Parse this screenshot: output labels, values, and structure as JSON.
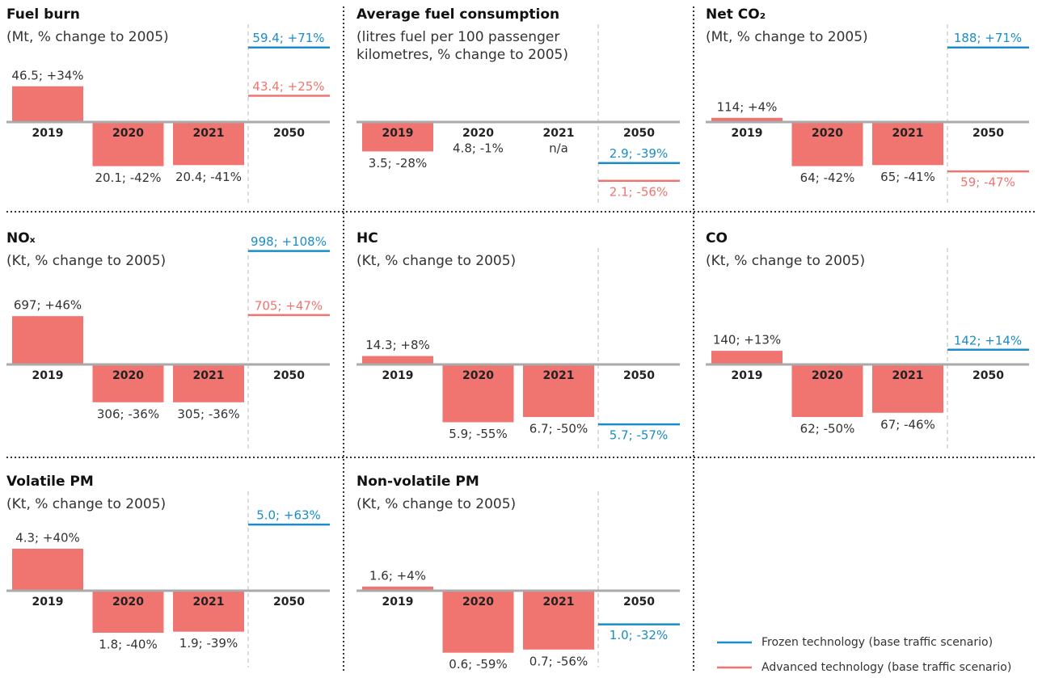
{
  "chart_data": [
    {
      "type": "bar",
      "title": "Fuel burn",
      "subtitle": "(Mt, % change to 2005)",
      "categories": [
        "2019",
        "2020",
        "2021",
        "2050"
      ],
      "values": [
        34,
        -42,
        -41,
        null
      ],
      "value_labels": [
        "46.5; +34%",
        "20.1; -42%",
        "20.4; -41%",
        null
      ],
      "frozen": {
        "value": 71,
        "label": "59.4; +71%"
      },
      "advanced": {
        "value": 25,
        "label": "43.4; +25%"
      }
    },
    {
      "type": "bar",
      "title": "Average fuel consumption",
      "subtitle": "(litres fuel per 100 passenger kilometres, % change to 2005)",
      "categories": [
        "2019",
        "2020",
        "2021",
        "2050"
      ],
      "values": [
        -28,
        -1,
        null,
        null
      ],
      "value_labels": [
        "3.5; -28%",
        "4.8; -1%",
        "n/a",
        null
      ],
      "frozen": {
        "value": -39,
        "label": "2.9; -39%"
      },
      "advanced": {
        "value": -56,
        "label": "2.1; -56%"
      }
    },
    {
      "type": "bar",
      "title": "Net CO₂",
      "subtitle": "(Mt, % change to 2005)",
      "categories": [
        "2019",
        "2020",
        "2021",
        "2050"
      ],
      "values": [
        4,
        -42,
        -41,
        null
      ],
      "value_labels": [
        "114; +4%",
        "64; -42%",
        "65; -41%",
        null
      ],
      "frozen": {
        "value": 71,
        "label": "188; +71%"
      },
      "advanced": {
        "value": -47,
        "label": "59; -47%"
      }
    },
    {
      "type": "bar",
      "title": "NOₓ",
      "subtitle": "(Kt, % change to 2005)",
      "categories": [
        "2019",
        "2020",
        "2021",
        "2050"
      ],
      "values": [
        46,
        -36,
        -36,
        null
      ],
      "value_labels": [
        "697; +46%",
        "306; -36%",
        "305; -36%",
        null
      ],
      "frozen": {
        "value": 108,
        "label": "998; +108%"
      },
      "advanced": {
        "value": 47,
        "label": "705; +47%"
      }
    },
    {
      "type": "bar",
      "title": "HC",
      "subtitle": "(Kt, % change to 2005)",
      "categories": [
        "2019",
        "2020",
        "2021",
        "2050"
      ],
      "values": [
        8,
        -55,
        -50,
        null
      ],
      "value_labels": [
        "14.3; +8%",
        "5.9; -55%",
        "6.7; -50%",
        null
      ],
      "frozen": {
        "value": -57,
        "label": "5.7; -57%"
      }
    },
    {
      "type": "bar",
      "title": "CO",
      "subtitle": "(Kt, % change to 2005)",
      "categories": [
        "2019",
        "2020",
        "2021",
        "2050"
      ],
      "values": [
        13,
        -50,
        -46,
        null
      ],
      "value_labels": [
        "140; +13%",
        "62; -50%",
        "67; -46%",
        null
      ],
      "frozen": {
        "value": 14,
        "label": "142; +14%"
      }
    },
    {
      "type": "bar",
      "title": "Volatile PM",
      "subtitle": "(Kt, % change to 2005)",
      "categories": [
        "2019",
        "2020",
        "2021",
        "2050"
      ],
      "values": [
        40,
        -40,
        -39,
        null
      ],
      "value_labels": [
        "4.3; +40%",
        "1.8; -40%",
        "1.9; -39%",
        null
      ],
      "frozen": {
        "value": 63,
        "label": "5.0; +63%"
      }
    },
    {
      "type": "bar",
      "title": "Non-volatile PM",
      "subtitle": "(Kt, % change to 2005)",
      "categories": [
        "2019",
        "2020",
        "2021",
        "2050"
      ],
      "values": [
        4,
        -59,
        -56,
        null
      ],
      "value_labels": [
        "1.6; +4%",
        "0.6; -59%",
        "0.7; -56%",
        null
      ],
      "frozen": {
        "value": -32,
        "label": "1.0; -32%"
      }
    }
  ],
  "bar_color": "#f07470",
  "legend": {
    "frozen": {
      "name": "Frozen technology (base traffic scenario)",
      "color": "#1a8cc8"
    },
    "advanced": {
      "name": "Advanced technology (base traffic scenario)",
      "color": "#f07470"
    }
  }
}
